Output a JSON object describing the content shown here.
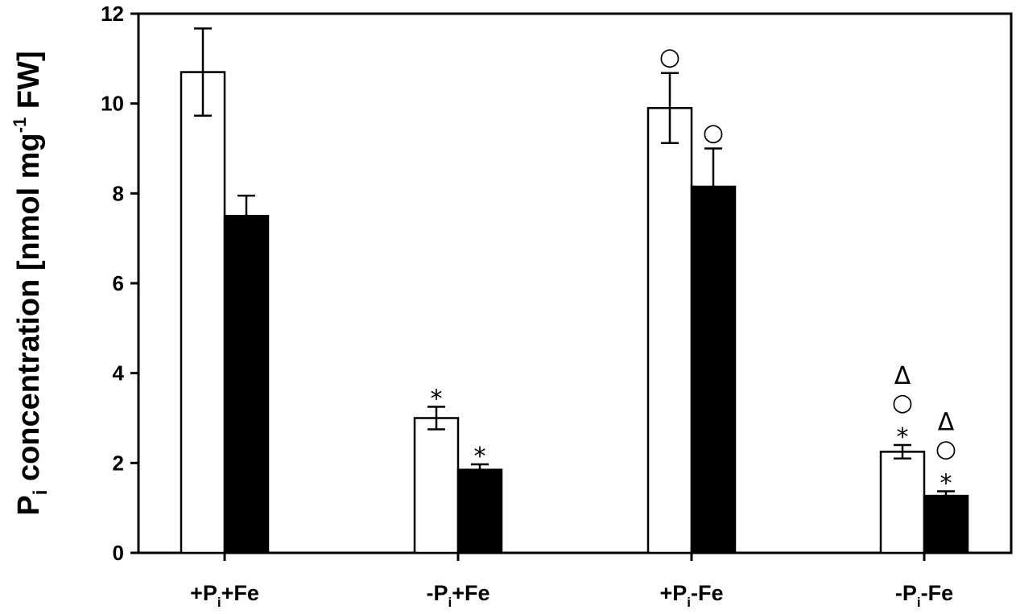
{
  "chart_data": {
    "type": "bar",
    "title": "",
    "ylabel": {
      "main": "P",
      "sub": "i",
      "rest": " concentration [nmol mg",
      "sup": "-1",
      "end": " FW]"
    },
    "ylim": [
      0,
      12
    ],
    "yticks": [
      "0",
      "2",
      "4",
      "6",
      "8",
      "10",
      "12"
    ],
    "categories": [
      {
        "pre": "+P",
        "sub": "i",
        "post": "+Fe"
      },
      {
        "pre": "-P",
        "sub": "i",
        "post": "+Fe"
      },
      {
        "pre": "+P",
        "sub": "i",
        "post": "-Fe"
      },
      {
        "pre": "-P",
        "sub": "i",
        "post": "-Fe"
      }
    ],
    "series": [
      {
        "fill": "#ffffff",
        "values": [
          10.7,
          3.0,
          9.9,
          2.25
        ],
        "errors": [
          0.97,
          0.25,
          0.78,
          0.15
        ],
        "markers": [
          [],
          [
            "*"
          ],
          [
            "○"
          ],
          [
            "*",
            "○",
            "Δ"
          ]
        ]
      },
      {
        "fill": "#000000",
        "values": [
          7.5,
          1.85,
          8.15,
          1.27
        ],
        "errors": [
          0.45,
          0.12,
          0.85,
          0.1
        ],
        "markers": [
          [],
          [
            "*"
          ],
          [
            "○"
          ],
          [
            "*",
            "○",
            "Δ"
          ]
        ]
      }
    ]
  }
}
